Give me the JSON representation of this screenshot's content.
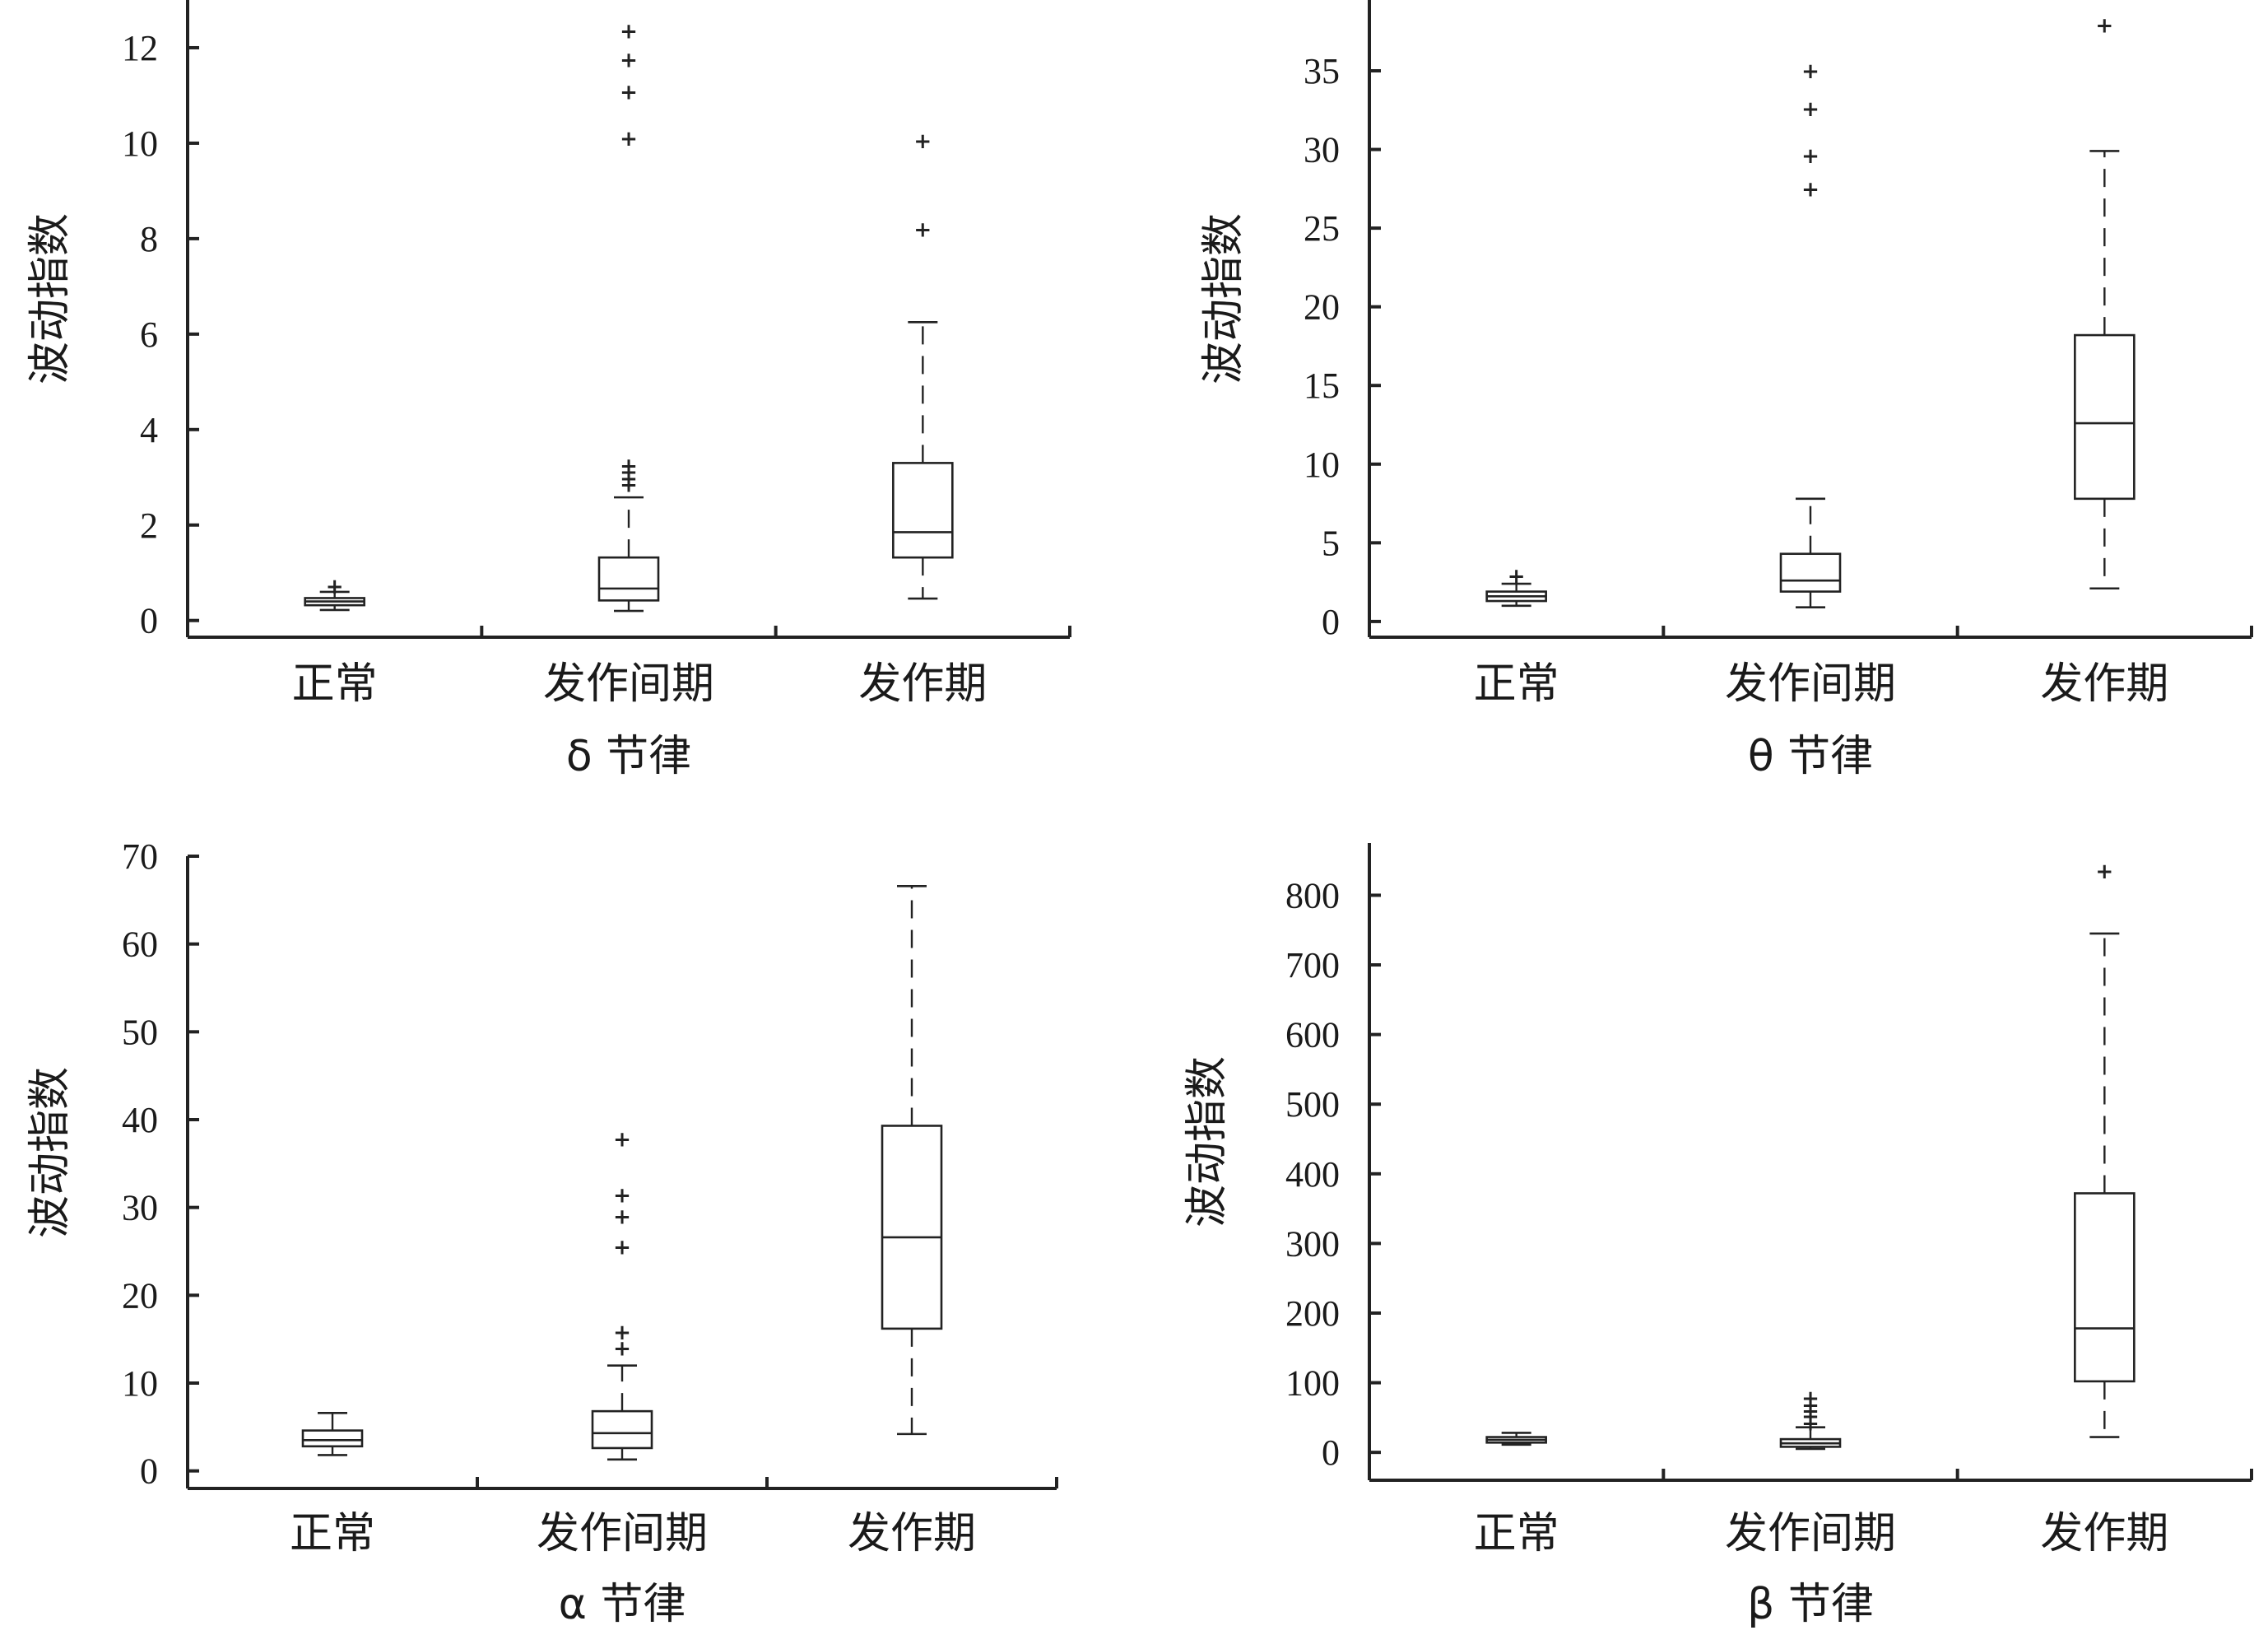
{
  "chart_data": [
    {
      "type": "box",
      "xlabel": "δ 节律",
      "ylabel": "波动指数",
      "categories": [
        "正常",
        "发作间期",
        "发作期"
      ],
      "ylim": [
        -0.35,
        13.0
      ],
      "yticks": [
        0,
        2,
        4,
        6,
        8,
        10,
        12
      ],
      "boxes": [
        {
          "category": "正常",
          "whisker_low": 0.22,
          "q1": 0.32,
          "median": 0.4,
          "q3": 0.47,
          "whisker_high": 0.6,
          "outliers": [
            0.72
          ]
        },
        {
          "category": "发作间期",
          "whisker_low": 0.2,
          "q1": 0.42,
          "median": 0.67,
          "q3": 1.32,
          "whisker_high": 2.58,
          "outliers": [
            2.85,
            2.98,
            3.12,
            3.25,
            10.1,
            11.08,
            11.75,
            12.35
          ]
        },
        {
          "category": "发作期",
          "whisker_low": 0.46,
          "q1": 1.32,
          "median": 1.85,
          "q3": 3.3,
          "whisker_high": 6.25,
          "outliers": [
            8.2,
            10.05
          ]
        }
      ]
    },
    {
      "type": "box",
      "xlabel": "θ 节律",
      "ylabel": "波动指数",
      "categories": [
        "正常",
        "发作间期",
        "发作期"
      ],
      "ylim": [
        -1.0,
        39.5
      ],
      "yticks": [
        0,
        5,
        10,
        15,
        20,
        25,
        30,
        35
      ],
      "boxes": [
        {
          "category": "正常",
          "whisker_low": 1.0,
          "q1": 1.3,
          "median": 1.6,
          "q3": 1.9,
          "whisker_high": 2.4,
          "outliers": [
            2.9
          ]
        },
        {
          "category": "发作间期",
          "whisker_low": 0.9,
          "q1": 1.9,
          "median": 2.6,
          "q3": 4.3,
          "whisker_high": 7.8,
          "outliers": [
            27.5,
            29.6,
            32.6,
            35.0
          ]
        },
        {
          "category": "发作期",
          "whisker_low": 2.1,
          "q1": 7.8,
          "median": 12.6,
          "q3": 18.2,
          "whisker_high": 29.9,
          "outliers": [
            37.9
          ]
        }
      ]
    },
    {
      "type": "box",
      "xlabel": "α 节律",
      "ylabel": "波动指数",
      "categories": [
        "正常",
        "发作间期",
        "发作期"
      ],
      "ylim": [
        -2.0,
        70.0
      ],
      "yticks": [
        0,
        10,
        20,
        30,
        40,
        50,
        60,
        70
      ],
      "boxes": [
        {
          "category": "正常",
          "whisker_low": 1.8,
          "q1": 2.8,
          "median": 3.5,
          "q3": 4.6,
          "whisker_high": 6.6,
          "outliers": []
        },
        {
          "category": "发作间期",
          "whisker_low": 1.3,
          "q1": 2.6,
          "median": 4.3,
          "q3": 6.8,
          "whisker_high": 12.0,
          "outliers": [
            14.0,
            15.8,
            25.5,
            29.0,
            31.4,
            37.8
          ]
        },
        {
          "category": "发作期",
          "whisker_low": 4.2,
          "q1": 16.2,
          "median": 26.6,
          "q3": 39.3,
          "whisker_high": 66.6,
          "outliers": []
        }
      ]
    },
    {
      "type": "box",
      "xlabel": "β 节律",
      "ylabel": "波动指数",
      "categories": [
        "正常",
        "发作间期",
        "发作期"
      ],
      "ylim": [
        -40,
        875
      ],
      "yticks": [
        0,
        100,
        200,
        300,
        400,
        500,
        600,
        700,
        800
      ],
      "boxes": [
        {
          "category": "正常",
          "whisker_low": 11,
          "q1": 14,
          "median": 18,
          "q3": 22,
          "whisker_high": 28,
          "outliers": []
        },
        {
          "category": "发作间期",
          "whisker_low": 5,
          "q1": 8,
          "median": 13,
          "q3": 19,
          "whisker_high": 36,
          "outliers": [
            42,
            52,
            60,
            68,
            78
          ]
        },
        {
          "category": "发作期",
          "whisker_low": 22,
          "q1": 102,
          "median": 178,
          "q3": 372,
          "whisker_high": 745,
          "outliers": [
            835
          ]
        }
      ]
    }
  ]
}
